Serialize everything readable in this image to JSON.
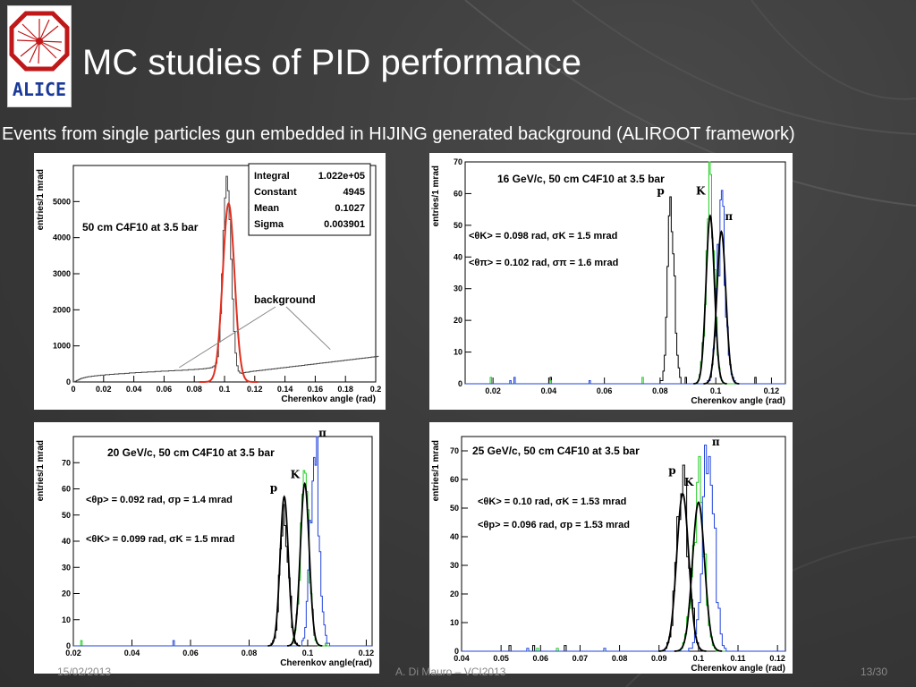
{
  "slide": {
    "title": "MC studies of PID performance",
    "subtitle": "Events from single particles gun embedded in HIJING generated background (ALIROOT framework)",
    "logo_text": "ALICE",
    "footer": {
      "date": "15/02/2013",
      "author": "A. Di Mauro – VCI2013",
      "page": "13/30"
    }
  },
  "chart_data": [
    {
      "type": "histogram",
      "title": "50 cm C4F10 at 3.5 bar",
      "xlabel": "Cherenkov angle (rad)",
      "ylabel": "entries/1 mrad",
      "xlim": [
        0,
        0.2
      ],
      "ylim": [
        0,
        6000
      ],
      "xticks": [
        0,
        0.02,
        0.04,
        0.06,
        0.08,
        0.1,
        0.12,
        0.14,
        0.16,
        0.18,
        0.2
      ],
      "yticks": [
        0,
        1000,
        2000,
        3000,
        4000,
        5000
      ],
      "stats_box": [
        {
          "label": "Integral",
          "value": "1.022e+05"
        },
        {
          "label": "Constant",
          "value": "4945"
        },
        {
          "label": "Mean",
          "value": "0.1027"
        },
        {
          "label": "Sigma",
          "value": "0.003901"
        }
      ],
      "annotation": "background",
      "series": [
        {
          "kind": "histogram",
          "color": "#444444",
          "bin_width": 0.001,
          "x_start": 0.0,
          "values": [
            0,
            20,
            40,
            60,
            80,
            100,
            110,
            120,
            130,
            140,
            150,
            150,
            160,
            160,
            170,
            170,
            180,
            180,
            190,
            190,
            190,
            200,
            200,
            200,
            210,
            210,
            210,
            220,
            220,
            220,
            230,
            230,
            230,
            230,
            240,
            240,
            240,
            250,
            250,
            250,
            250,
            260,
            260,
            260,
            260,
            270,
            270,
            270,
            270,
            280,
            280,
            280,
            280,
            280,
            290,
            290,
            290,
            290,
            300,
            300,
            300,
            300,
            300,
            310,
            310,
            310,
            310,
            320,
            320,
            320,
            320,
            320,
            330,
            330,
            330,
            330,
            340,
            340,
            340,
            340,
            350,
            350,
            350,
            360,
            360,
            360,
            370,
            370,
            380,
            380,
            390,
            400,
            420,
            450,
            520,
            700,
            1100,
            1900,
            3000,
            4200,
            5100,
            5700,
            5300,
            4500,
            3400,
            2300,
            1400,
            800,
            450,
            300,
            250,
            240,
            250,
            260,
            270,
            270,
            280,
            290,
            290,
            300,
            300,
            310,
            310,
            320,
            320,
            330,
            330,
            340,
            340,
            350,
            350,
            360,
            360,
            370,
            370,
            380,
            380,
            390,
            390,
            400,
            400,
            410,
            410,
            420,
            420,
            430,
            430,
            440,
            440,
            450,
            450,
            460,
            460,
            470,
            470,
            480,
            480,
            490,
            490,
            500,
            500,
            510,
            510,
            520,
            520,
            530,
            530,
            540,
            540,
            550,
            550,
            560,
            560,
            570,
            570,
            580,
            580,
            590,
            590,
            600,
            600,
            610,
            610,
            620,
            620,
            630,
            630,
            640,
            640,
            650,
            650,
            660,
            660,
            670,
            670,
            680,
            680,
            690,
            690,
            700,
            700,
            710
          ]
        },
        {
          "kind": "gauss_fit",
          "color": "#e03020",
          "constant": 4945,
          "mean": 0.1027,
          "sigma": 0.003901
        }
      ]
    },
    {
      "type": "histogram",
      "title": "16 GeV/c, 50 cm C4F10 at 3.5 bar",
      "xlabel": "Cherenkov angle (rad)",
      "ylabel": "entries/1 mrad",
      "xlim": [
        0.01,
        0.125
      ],
      "ylim": [
        0,
        70
      ],
      "xticks": [
        0.02,
        0.04,
        0.06,
        0.08,
        0.1,
        0.12
      ],
      "yticks": [
        0,
        10,
        20,
        30,
        40,
        50,
        60,
        70
      ],
      "annotations": [
        "<θK> = 0.098 rad, σK = 1.5 mrad",
        "<θπ> = 0.102 rad, σπ = 1.6 mrad"
      ],
      "series": [
        {
          "name": "p",
          "color": "#000000",
          "mean": 0.084,
          "sigma": 0.0012,
          "peak": 58
        },
        {
          "name": "K",
          "color": "#22cc22",
          "mean": 0.098,
          "sigma": 0.0015,
          "peak": 58
        },
        {
          "name": "π",
          "color": "#2244dd",
          "mean": 0.102,
          "sigma": 0.0016,
          "peak": 50
        },
        {
          "name": "K fit",
          "kind": "gauss_fit",
          "color": "#000000",
          "mean": 0.098,
          "sigma": 0.0015,
          "peak": 53
        },
        {
          "name": "π fit",
          "kind": "gauss_fit",
          "color": "#000000",
          "mean": 0.102,
          "sigma": 0.0016,
          "peak": 48
        }
      ]
    },
    {
      "type": "histogram",
      "title": "20 GeV/c, 50 cm C4F10 at 3.5 bar",
      "xlabel": "Cherenkov angle(rad)",
      "ylabel": "entries/1 mrad",
      "xlim": [
        0.02,
        0.122
      ],
      "ylim": [
        0,
        80
      ],
      "xticks": [
        0.02,
        0.04,
        0.06,
        0.08,
        0.1,
        0.12
      ],
      "yticks": [
        0,
        10,
        20,
        30,
        40,
        50,
        60,
        70
      ],
      "annotations": [
        "<θp> = 0.092 rad, σp = 1.4 mrad",
        "<θK> = 0.099 rad, σK = 1.5 mrad"
      ],
      "series": [
        {
          "name": "p",
          "color": "#000000",
          "mean": 0.092,
          "sigma": 0.0014,
          "peak": 57
        },
        {
          "name": "K",
          "color": "#22cc22",
          "mean": 0.099,
          "sigma": 0.0015,
          "peak": 62
        },
        {
          "name": "π",
          "color": "#2244dd",
          "mean": 0.1025,
          "sigma": 0.0015,
          "peak": 78
        },
        {
          "name": "p fit",
          "kind": "gauss_fit",
          "color": "#000000",
          "mean": 0.092,
          "sigma": 0.0014,
          "peak": 57
        },
        {
          "name": "K fit",
          "kind": "gauss_fit",
          "color": "#000000",
          "mean": 0.099,
          "sigma": 0.0015,
          "peak": 62
        }
      ]
    },
    {
      "type": "histogram",
      "title": "25 GeV/c, 50 cm C4F10 at 3.5 bar",
      "xlabel": "Cherenkov angle (rad)",
      "ylabel": "entries/1 mrad",
      "xlim": [
        0.04,
        0.122
      ],
      "ylim": [
        0,
        75
      ],
      "xticks": [
        0.04,
        0.05,
        0.06,
        0.07,
        0.08,
        0.09,
        0.1,
        0.11,
        0.12
      ],
      "yticks": [
        0,
        10,
        20,
        30,
        40,
        50,
        60,
        70
      ],
      "annotations": [
        "<θK> = 0.10 rad, σK = 1.53 mrad",
        "<θp> = 0.096 rad, σp = 1.53 mrad"
      ],
      "series": [
        {
          "name": "p",
          "color": "#000000",
          "mean": 0.096,
          "sigma": 0.00153,
          "peak": 60
        },
        {
          "name": "K",
          "color": "#22cc22",
          "mean": 0.1,
          "sigma": 0.00153,
          "peak": 56
        },
        {
          "name": "π",
          "color": "#2244dd",
          "mean": 0.1025,
          "sigma": 0.0015,
          "peak": 70
        },
        {
          "name": "p fit",
          "kind": "gauss_fit",
          "color": "#000000",
          "mean": 0.096,
          "sigma": 0.00153,
          "peak": 55
        },
        {
          "name": "K fit",
          "kind": "gauss_fit",
          "color": "#000000",
          "mean": 0.1,
          "sigma": 0.00153,
          "peak": 52
        }
      ]
    }
  ]
}
